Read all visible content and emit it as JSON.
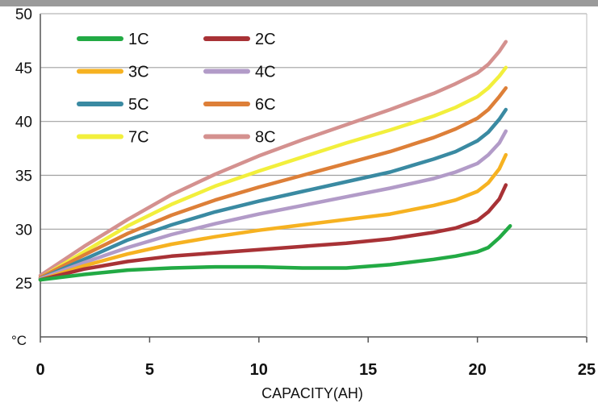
{
  "chart_data": {
    "type": "line",
    "title": "",
    "xlabel": "CAPACITY(AH)",
    "ylabel": "",
    "y_unit_label": "°C",
    "xlim": [
      0,
      25
    ],
    "ylim": [
      20,
      50
    ],
    "x_ticks": [
      "0",
      "5",
      "10",
      "15",
      "20",
      "25"
    ],
    "y_ticks": [
      "25",
      "30",
      "35",
      "40",
      "45",
      "50"
    ],
    "grid": "horizontal",
    "legend_placement": "top-left",
    "series": [
      {
        "name": "1C",
        "color": "#22aa44",
        "x": [
          0,
          2,
          4,
          6,
          8,
          10,
          12,
          14,
          16,
          18,
          19,
          20,
          20.5,
          21,
          21.5
        ],
        "y": [
          25.3,
          25.8,
          26.2,
          26.4,
          26.5,
          26.5,
          26.4,
          26.4,
          26.7,
          27.2,
          27.5,
          27.9,
          28.3,
          29.2,
          30.3
        ]
      },
      {
        "name": "2C",
        "color": "#a83236",
        "x": [
          0,
          2,
          4,
          6,
          8,
          10,
          12,
          14,
          16,
          18,
          19,
          20,
          20.5,
          21,
          21.3
        ],
        "y": [
          25.3,
          26.3,
          27.0,
          27.5,
          27.8,
          28.1,
          28.4,
          28.7,
          29.1,
          29.7,
          30.1,
          30.8,
          31.6,
          32.8,
          34.1
        ]
      },
      {
        "name": "3C",
        "color": "#f6b221",
        "x": [
          0,
          2,
          4,
          6,
          8,
          10,
          12,
          14,
          16,
          18,
          19,
          20,
          20.5,
          21,
          21.3
        ],
        "y": [
          25.3,
          26.6,
          27.7,
          28.6,
          29.3,
          29.9,
          30.4,
          30.9,
          31.4,
          32.2,
          32.7,
          33.5,
          34.3,
          35.6,
          36.9
        ]
      },
      {
        "name": "4C",
        "color": "#b29bc8",
        "x": [
          0,
          2,
          4,
          6,
          8,
          10,
          12,
          14,
          16,
          18,
          19,
          20,
          20.5,
          21,
          21.3
        ],
        "y": [
          25.4,
          26.9,
          28.3,
          29.5,
          30.5,
          31.4,
          32.2,
          33.0,
          33.8,
          34.7,
          35.3,
          36.1,
          36.9,
          38.0,
          39.1
        ]
      },
      {
        "name": "5C",
        "color": "#3a8aa2",
        "x": [
          0,
          2,
          4,
          6,
          8,
          10,
          12,
          14,
          16,
          18,
          19,
          20,
          20.5,
          21,
          21.3
        ],
        "y": [
          25.4,
          27.2,
          29.0,
          30.4,
          31.6,
          32.6,
          33.5,
          34.4,
          35.3,
          36.5,
          37.2,
          38.2,
          39.0,
          40.2,
          41.1
        ]
      },
      {
        "name": "6C",
        "color": "#dd7f38",
        "x": [
          0,
          2,
          4,
          6,
          8,
          10,
          12,
          14,
          16,
          18,
          19,
          20,
          20.5,
          21,
          21.3
        ],
        "y": [
          25.5,
          27.6,
          29.6,
          31.3,
          32.7,
          33.9,
          35.0,
          36.1,
          37.2,
          38.5,
          39.3,
          40.3,
          41.1,
          42.3,
          43.1
        ]
      },
      {
        "name": "7C",
        "color": "#f2ef3c",
        "x": [
          0,
          2,
          4,
          6,
          8,
          10,
          12,
          14,
          16,
          18,
          19,
          20,
          20.5,
          21,
          21.3
        ],
        "y": [
          25.5,
          27.9,
          30.3,
          32.3,
          34.0,
          35.4,
          36.7,
          38.0,
          39.2,
          40.5,
          41.3,
          42.3,
          43.1,
          44.2,
          45.0
        ]
      },
      {
        "name": "8C",
        "color": "#d4918f",
        "x": [
          0,
          2,
          4,
          6,
          8,
          10,
          12,
          14,
          16,
          18,
          19,
          20,
          20.5,
          21,
          21.3
        ],
        "y": [
          25.7,
          28.4,
          30.9,
          33.2,
          35.1,
          36.8,
          38.3,
          39.7,
          41.1,
          42.6,
          43.5,
          44.5,
          45.3,
          46.5,
          47.4
        ]
      }
    ]
  }
}
